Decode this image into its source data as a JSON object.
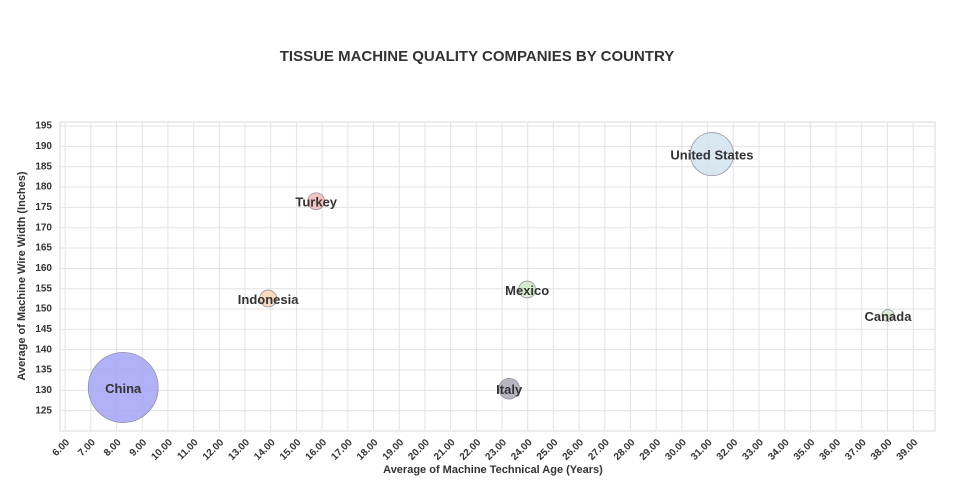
{
  "chart_data": {
    "type": "bubble",
    "title": "TISSUE MACHINE QUALITY COMPANIES BY COUNTRY",
    "x_label": "Average of Machine Technical Age (Years)",
    "y_label": "Average of Machine Wire Width (Inches)",
    "xlim": [
      5.8,
      39.85
    ],
    "ylim": [
      120,
      196
    ],
    "xticks": [
      {
        "value": 6,
        "label": "6.00"
      },
      {
        "value": 7,
        "label": "7.00"
      },
      {
        "value": 8,
        "label": "8.00"
      },
      {
        "value": 9,
        "label": "9.00"
      },
      {
        "value": 10,
        "label": "10.00"
      },
      {
        "value": 11,
        "label": "11.00"
      },
      {
        "value": 12,
        "label": "12.00"
      },
      {
        "value": 13,
        "label": "13.00"
      },
      {
        "value": 14,
        "label": "14.00"
      },
      {
        "value": 15,
        "label": "15.00"
      },
      {
        "value": 16,
        "label": "16.00"
      },
      {
        "value": 17,
        "label": "17.00"
      },
      {
        "value": 18,
        "label": "18.00"
      },
      {
        "value": 19,
        "label": "19.00"
      },
      {
        "value": 20,
        "label": "20.00"
      },
      {
        "value": 21,
        "label": "21.00"
      },
      {
        "value": 22,
        "label": "22.00"
      },
      {
        "value": 23,
        "label": "23.00"
      },
      {
        "value": 24,
        "label": "24.00"
      },
      {
        "value": 25,
        "label": "25.00"
      },
      {
        "value": 26,
        "label": "26.00"
      },
      {
        "value": 27,
        "label": "27.00"
      },
      {
        "value": 28,
        "label": "28.00"
      },
      {
        "value": 29,
        "label": "29.00"
      },
      {
        "value": 30,
        "label": "30.00"
      },
      {
        "value": 31,
        "label": "31.00"
      },
      {
        "value": 32,
        "label": "32.00"
      },
      {
        "value": 33,
        "label": "33.00"
      },
      {
        "value": 34,
        "label": "34.00"
      },
      {
        "value": 35,
        "label": "35.00"
      },
      {
        "value": 36,
        "label": "36.00"
      },
      {
        "value": 37,
        "label": "37.00"
      },
      {
        "value": 38,
        "label": "38.00"
      },
      {
        "value": 39,
        "label": "39.00"
      }
    ],
    "yticks": [
      125,
      130,
      135,
      140,
      145,
      150,
      155,
      160,
      165,
      170,
      175,
      180,
      185,
      190,
      195
    ],
    "grid": true,
    "series": [
      {
        "name": "China",
        "color": "#a3a3f7",
        "x": [
          8.26
        ],
        "values": [
          130.7
        ],
        "sizes": [
          34
        ]
      },
      {
        "name": "United States",
        "color": "#d2e3ee",
        "x": [
          31.17
        ],
        "values": [
          188.1
        ],
        "sizes": [
          13
        ]
      },
      {
        "name": "Turkey",
        "color": "#f2b9b9",
        "x": [
          15.77
        ],
        "values": [
          176.5
        ],
        "sizes": [
          2
        ]
      },
      {
        "name": "Indonesia",
        "color": "#f7d5b3",
        "x": [
          13.9
        ],
        "values": [
          152.6
        ],
        "sizes": [
          2
        ]
      },
      {
        "name": "Mexico",
        "color": "#d0e7c9",
        "x": [
          23.98
        ],
        "values": [
          154.8
        ],
        "sizes": [
          2
        ]
      },
      {
        "name": "Canada",
        "color": "#d3e8cb",
        "x": [
          38.02
        ],
        "values": [
          148.4
        ],
        "sizes": [
          1
        ]
      },
      {
        "name": "Italy",
        "color": "#a9a9b5",
        "x": [
          23.28
        ],
        "values": [
          130.4
        ],
        "sizes": [
          3
        ]
      }
    ]
  }
}
